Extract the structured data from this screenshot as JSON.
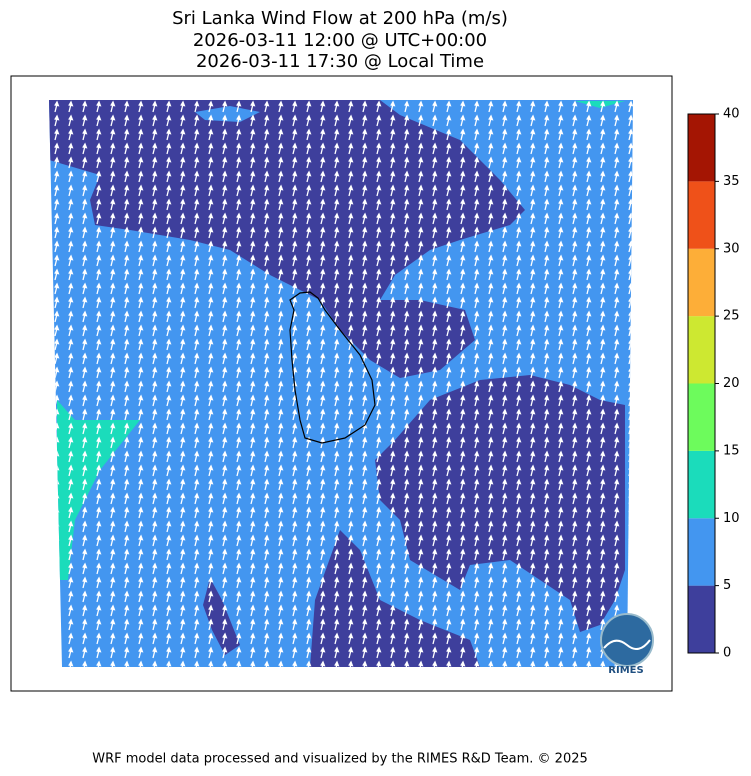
{
  "header": {
    "title_lines": [
      "Sri Lanka Wind Flow at 200 hPa (m/s)",
      "2026-03-11 12:00 @ UTC+00:00",
      "2026-03-11 17:30 @ Local Time"
    ]
  },
  "colorbar": {
    "ticks": [
      0,
      5,
      10,
      15,
      20,
      25,
      30,
      35,
      40
    ],
    "colors": [
      "#3e3f9c",
      "#4396f0",
      "#1bdcbb",
      "#6dfb5c",
      "#cde831",
      "#fdae38",
      "#ef5119",
      "#a41503"
    ]
  },
  "logo": {
    "text": "RIMES"
  },
  "footer": {
    "text": "WRF model data processed and visualized by the RIMES R&D Team. © 2025"
  }
}
